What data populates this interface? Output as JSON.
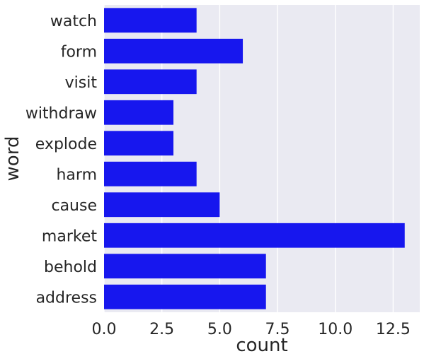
{
  "chart_data": {
    "type": "bar",
    "orientation": "horizontal",
    "categories": [
      "watch",
      "form",
      "visit",
      "withdraw",
      "explode",
      "harm",
      "cause",
      "market",
      "behold",
      "address"
    ],
    "values": [
      4,
      6,
      4,
      3,
      3,
      4,
      5,
      13,
      7,
      7
    ],
    "xlabel": "count",
    "ylabel": "word",
    "xlim": [
      0,
      13.65
    ],
    "xticks": [
      0.0,
      2.5,
      5.0,
      7.5,
      10.0,
      12.5
    ],
    "xtick_labels": [
      "0.0",
      "2.5",
      "5.0",
      "7.5",
      "10.0",
      "12.5"
    ],
    "grid": true,
    "style": "seaborn-darkgrid",
    "colors": {
      "bar": "#1717ee",
      "background": "#eaeaf2",
      "grid": "#ffffff",
      "text": "#262626"
    }
  }
}
